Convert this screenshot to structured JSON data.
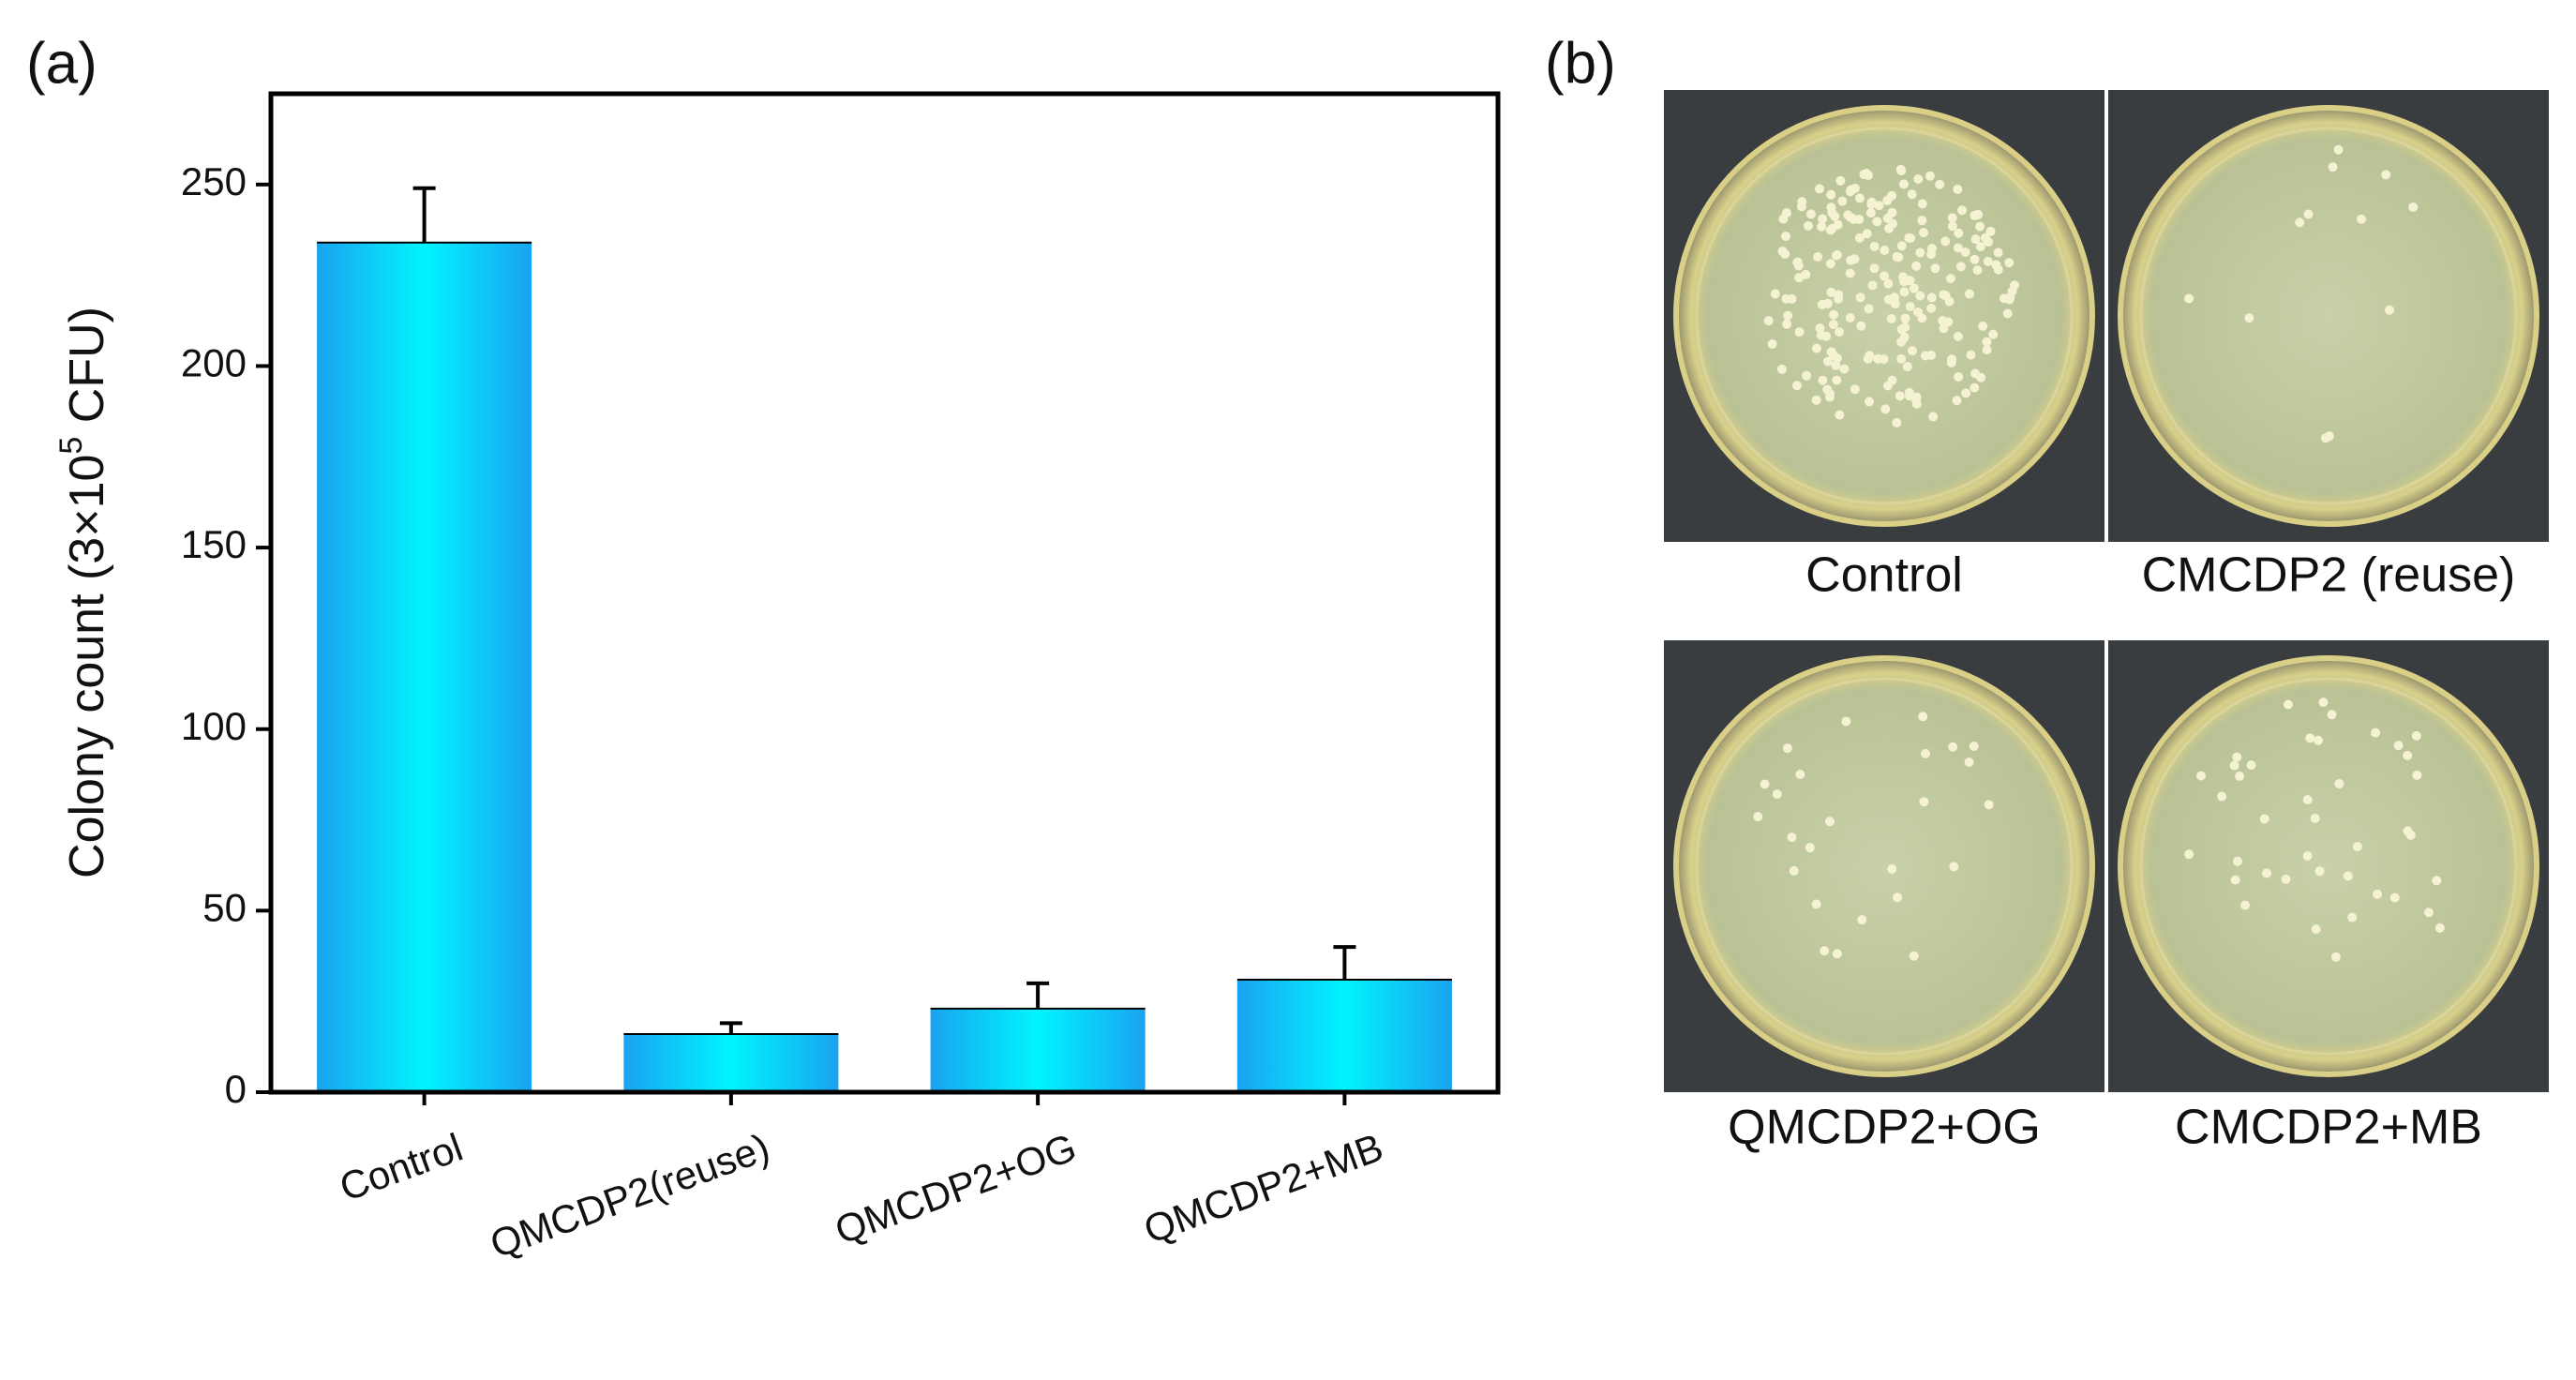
{
  "chart_data": {
    "type": "bar",
    "panel_label": "(a)",
    "y_label_parts": [
      "Colony count (3×10",
      "5",
      " CFU)"
    ],
    "categories": [
      "Control",
      "QMCDP2(reuse)",
      "QMCDP2+OG",
      "QMCDP2+MB"
    ],
    "values": [
      234,
      16,
      23,
      31
    ],
    "errors": [
      15,
      3,
      7,
      9
    ],
    "color": "#1aa3f0",
    "ylim": [
      0,
      275
    ],
    "yticks": [
      0,
      50,
      100,
      150,
      200,
      250
    ]
  },
  "panel_b": {
    "panel_label": "(b)",
    "captions": [
      "Control",
      "CMCDP2 (reuse)",
      "QMCDP2+OG",
      "CMCDP2+MB"
    ]
  }
}
